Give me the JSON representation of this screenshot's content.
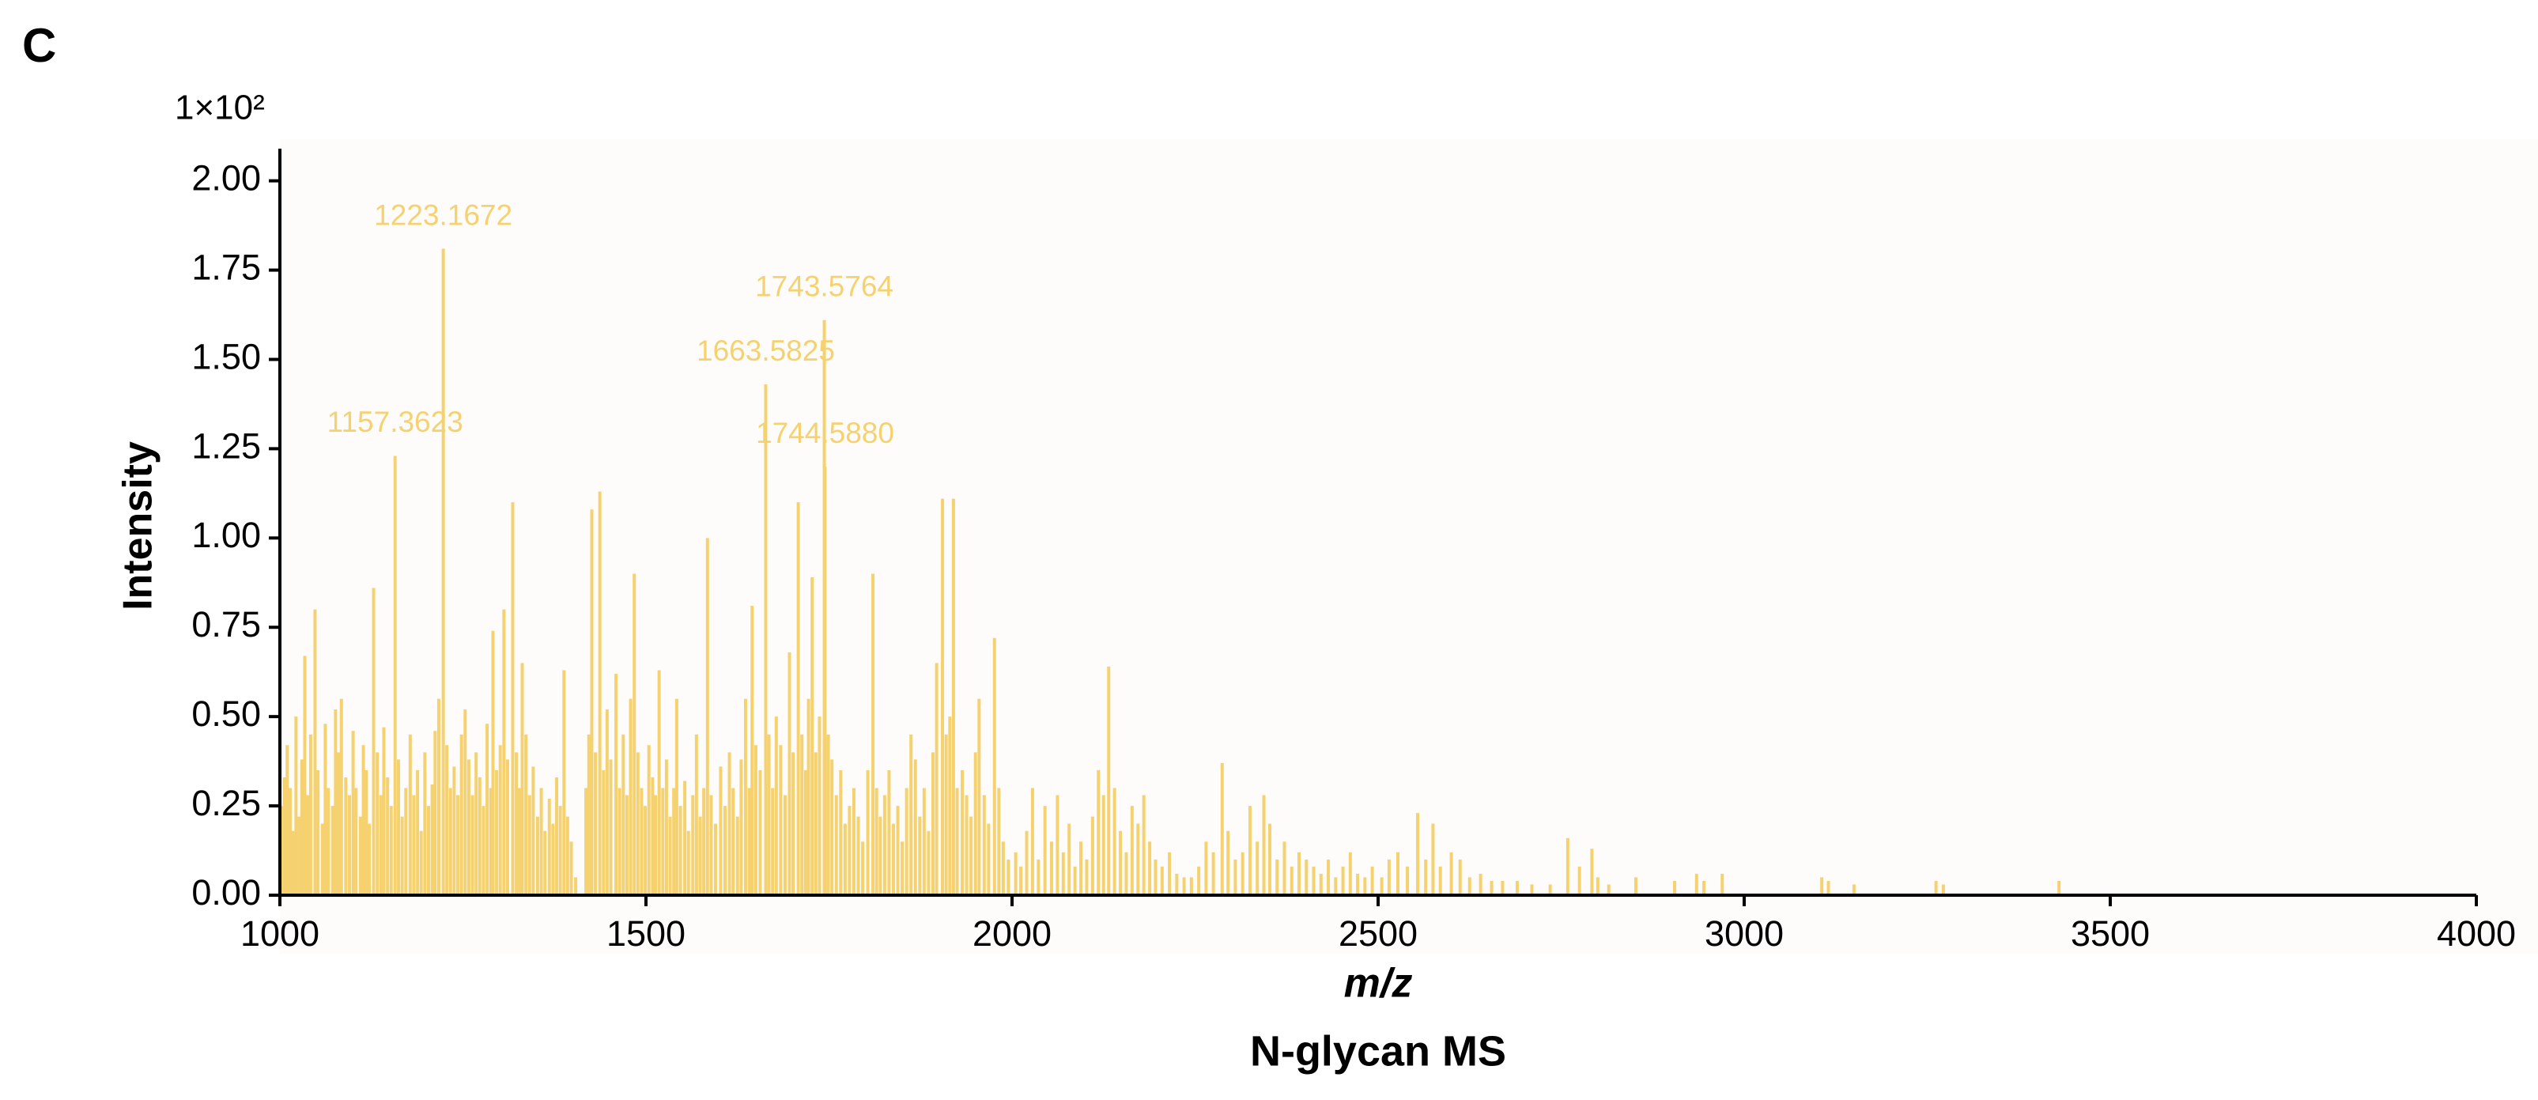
{
  "chart_data": {
    "type": "stem",
    "panel_label": "C",
    "multiplier": "1×10²",
    "title": "N-glycan MS",
    "xlabel": "m/z",
    "ylabel": "Intensity",
    "color": "#f5d26f",
    "xlim": [
      1000,
      4000
    ],
    "ylim": [
      0,
      2.09
    ],
    "xticks": [
      1000,
      1500,
      2000,
      2500,
      3000,
      3500,
      4000
    ],
    "yticks": [
      {
        "value": 0,
        "label": "0.00"
      },
      {
        "value": 0.25,
        "label": "0.25"
      },
      {
        "value": 0.5,
        "label": "0.50"
      },
      {
        "value": 0.75,
        "label": "0.75"
      },
      {
        "value": 1,
        "label": "1.00"
      },
      {
        "value": 1.25,
        "label": "1.25"
      },
      {
        "value": 1.5,
        "label": "1.50"
      },
      {
        "value": 1.75,
        "label": "1.75"
      },
      {
        "value": 2,
        "label": "2.00"
      }
    ],
    "x": [
      1002,
      1006,
      1010,
      1014,
      1018,
      1022,
      1026,
      1030,
      1034,
      1038,
      1042,
      1048,
      1052,
      1058,
      1062,
      1066,
      1072,
      1076,
      1080,
      1084,
      1090,
      1095,
      1100,
      1104,
      1110,
      1114,
      1118,
      1122,
      1128,
      1133,
      1138,
      1142,
      1147,
      1152,
      1157.3623,
      1162,
      1167,
      1172,
      1178,
      1183,
      1188,
      1193,
      1198,
      1203,
      1208,
      1212,
      1217,
      1223.1672,
      1228,
      1233,
      1238,
      1243,
      1248,
      1253,
      1258,
      1263,
      1268,
      1273,
      1278,
      1283,
      1288,
      1291,
      1296,
      1301,
      1306,
      1311,
      1318,
      1323,
      1327,
      1331,
      1336,
      1341,
      1346,
      1352,
      1357,
      1362,
      1368,
      1373,
      1378,
      1383,
      1388,
      1393,
      1398,
      1404,
      1418,
      1422,
      1426,
      1431,
      1437,
      1442,
      1447,
      1452,
      1459,
      1464,
      1469,
      1474,
      1479,
      1484,
      1489,
      1494,
      1499,
      1504,
      1509,
      1513,
      1518,
      1523,
      1528,
      1533,
      1538,
      1542,
      1547,
      1553,
      1558,
      1564,
      1569,
      1574,
      1579,
      1584,
      1589,
      1595,
      1602,
      1608,
      1614,
      1619,
      1625,
      1630,
      1636,
      1641,
      1645,
      1650,
      1656,
      1663.5825,
      1668,
      1673,
      1678,
      1684,
      1690,
      1696,
      1701,
      1708,
      1713,
      1718,
      1722,
      1727,
      1732,
      1737,
      1743.5764,
      1744.588,
      1749,
      1754,
      1760,
      1766,
      1772,
      1778,
      1784,
      1790,
      1796,
      1803,
      1810,
      1815,
      1820,
      1826,
      1832,
      1838,
      1844,
      1850,
      1856,
      1862,
      1868,
      1874,
      1880,
      1886,
      1892,
      1897,
      1905,
      1910,
      1915,
      1920,
      1925,
      1932,
      1938,
      1944,
      1950,
      1955,
      1962,
      1968,
      1976,
      1982,
      1988,
      1995,
      2005,
      2012,
      2020,
      2028,
      2036,
      2045,
      2054,
      2062,
      2070,
      2078,
      2086,
      2094,
      2102,
      2110,
      2118,
      2125,
      2132,
      2140,
      2148,
      2156,
      2164,
      2172,
      2180,
      2188,
      2196,
      2205,
      2215,
      2225,
      2235,
      2245,
      2255,
      2265,
      2275,
      2287,
      2295,
      2305,
      2315,
      2325,
      2335,
      2344,
      2352,
      2362,
      2372,
      2382,
      2392,
      2402,
      2412,
      2422,
      2432,
      2442,
      2452,
      2462,
      2472,
      2482,
      2492,
      2505,
      2515,
      2527,
      2540,
      2554,
      2565,
      2575,
      2585,
      2600,
      2612,
      2625,
      2640,
      2655,
      2670,
      2690,
      2710,
      2735,
      2759,
      2775,
      2792,
      2800,
      2815,
      2852,
      2905,
      2935,
      2945,
      2970,
      3106,
      3115,
      3150,
      3262,
      3272,
      3430
    ],
    "values": [
      0.25,
      0.33,
      0.42,
      0.3,
      0.18,
      0.5,
      0.22,
      0.38,
      0.67,
      0.28,
      0.45,
      0.8,
      0.35,
      0.2,
      0.48,
      0.3,
      0.25,
      0.52,
      0.4,
      0.55,
      0.33,
      0.28,
      0.46,
      0.3,
      0.22,
      0.42,
      0.35,
      0.2,
      0.86,
      0.4,
      0.28,
      0.47,
      0.33,
      0.25,
      1.23,
      0.38,
      0.22,
      0.3,
      0.45,
      0.28,
      0.35,
      0.18,
      0.4,
      0.25,
      0.31,
      0.46,
      0.55,
      1.81,
      0.42,
      0.3,
      0.36,
      0.28,
      0.45,
      0.52,
      0.38,
      0.28,
      0.4,
      0.33,
      0.25,
      0.48,
      0.3,
      0.74,
      0.35,
      0.42,
      0.8,
      0.38,
      1.1,
      0.4,
      0.3,
      0.65,
      0.45,
      0.28,
      0.36,
      0.22,
      0.3,
      0.18,
      0.27,
      0.2,
      0.33,
      0.25,
      0.63,
      0.22,
      0.15,
      0.05,
      0.3,
      0.45,
      1.08,
      0.4,
      1.13,
      0.35,
      0.52,
      0.38,
      0.62,
      0.3,
      0.45,
      0.28,
      0.55,
      0.9,
      0.4,
      0.3,
      0.25,
      0.42,
      0.33,
      0.28,
      0.63,
      0.3,
      0.38,
      0.22,
      0.3,
      0.55,
      0.25,
      0.32,
      0.18,
      0.28,
      0.45,
      0.22,
      0.3,
      1.0,
      0.28,
      0.2,
      0.36,
      0.25,
      0.4,
      0.3,
      0.22,
      0.38,
      0.55,
      0.3,
      0.81,
      0.42,
      0.35,
      1.43,
      0.45,
      0.3,
      0.5,
      0.42,
      0.28,
      0.68,
      0.4,
      1.1,
      0.45,
      0.35,
      0.55,
      0.89,
      0.4,
      0.5,
      1.61,
      1.2,
      0.45,
      0.38,
      0.28,
      0.35,
      0.2,
      0.25,
      0.3,
      0.22,
      0.15,
      0.35,
      0.9,
      0.3,
      0.22,
      0.28,
      0.35,
      0.2,
      0.25,
      0.15,
      0.3,
      0.45,
      0.38,
      0.22,
      0.3,
      0.18,
      0.4,
      0.65,
      1.11,
      0.45,
      0.5,
      1.11,
      0.3,
      0.35,
      0.28,
      0.22,
      0.4,
      0.55,
      0.28,
      0.2,
      0.72,
      0.3,
      0.15,
      0.1,
      0.12,
      0.08,
      0.18,
      0.3,
      0.1,
      0.25,
      0.15,
      0.28,
      0.12,
      0.2,
      0.08,
      0.15,
      0.1,
      0.22,
      0.35,
      0.28,
      0.64,
      0.3,
      0.18,
      0.12,
      0.25,
      0.2,
      0.28,
      0.15,
      0.1,
      0.08,
      0.12,
      0.06,
      0.05,
      0.05,
      0.08,
      0.15,
      0.12,
      0.37,
      0.18,
      0.1,
      0.12,
      0.25,
      0.15,
      0.28,
      0.2,
      0.1,
      0.15,
      0.08,
      0.12,
      0.1,
      0.08,
      0.06,
      0.1,
      0.05,
      0.08,
      0.12,
      0.06,
      0.05,
      0.08,
      0.05,
      0.1,
      0.12,
      0.08,
      0.23,
      0.1,
      0.2,
      0.08,
      0.12,
      0.1,
      0.05,
      0.06,
      0.04,
      0.04,
      0.04,
      0.03,
      0.03,
      0.16,
      0.08,
      0.13,
      0.05,
      0.03,
      0.05,
      0.04,
      0.06,
      0.04,
      0.06,
      0.05,
      0.04,
      0.03,
      0.04,
      0.03,
      0.04
    ],
    "annotations": [
      {
        "label": "1157.3623",
        "x": 1157.3623,
        "y": 1.23
      },
      {
        "label": "1223.1672",
        "x": 1223.1672,
        "y": 1.81
      },
      {
        "label": "1663.5825",
        "x": 1663.5825,
        "y": 1.43
      },
      {
        "label": "1743.5764",
        "x": 1743.5764,
        "y": 1.61
      },
      {
        "label": "1744.5880",
        "x": 1744.588,
        "y": 1.2
      }
    ]
  }
}
